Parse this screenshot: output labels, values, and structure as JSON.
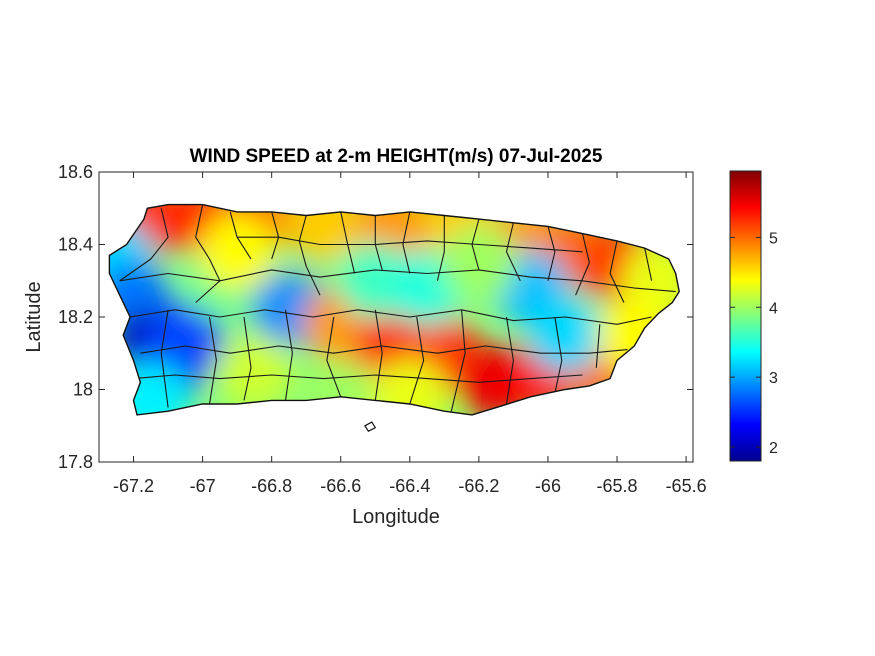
{
  "chart_data": {
    "type": "heatmap",
    "title": "WIND SPEED at 2-m HEIGHT(m/s) 07-Jul-2025",
    "xlabel": "Longitude",
    "ylabel": "Latitude",
    "xlim": [
      -67.3,
      -65.58
    ],
    "ylim": [
      17.8,
      18.6
    ],
    "x_ticks": [
      -67.2,
      -67,
      -66.8,
      -66.6,
      -66.4,
      -66.2,
      -66,
      -65.8,
      -65.6
    ],
    "x_tick_labels": [
      "-67.2",
      "-67",
      "-66.8",
      "-66.6",
      "-66.4",
      "-66.2",
      "-66",
      "-65.8",
      "-65.6"
    ],
    "y_ticks": [
      17.8,
      18,
      18.2,
      18.4,
      18.6
    ],
    "y_tick_labels": [
      "17.8",
      "18",
      "18.2",
      "18.4",
      "18.6"
    ],
    "colorbar": {
      "colormap": "jet",
      "range": [
        1.8,
        5.95
      ],
      "ticks": [
        2,
        3,
        4,
        5
      ],
      "tick_labels": [
        "2",
        "3",
        "4",
        "5"
      ]
    },
    "grid": false,
    "wind_field_samples": [
      {
        "lon": -67.15,
        "lat": 18.48,
        "speed": 5.2
      },
      {
        "lon": -67.0,
        "lat": 18.47,
        "speed": 5.3
      },
      {
        "lon": -66.85,
        "lat": 18.47,
        "speed": 5.0
      },
      {
        "lon": -66.65,
        "lat": 18.46,
        "speed": 4.6
      },
      {
        "lon": -66.45,
        "lat": 18.46,
        "speed": 4.8
      },
      {
        "lon": -66.25,
        "lat": 18.45,
        "speed": 4.6
      },
      {
        "lon": -66.05,
        "lat": 18.42,
        "speed": 4.8
      },
      {
        "lon": -65.9,
        "lat": 18.38,
        "speed": 5.0
      },
      {
        "lon": -65.78,
        "lat": 18.34,
        "speed": 5.3
      },
      {
        "lon": -65.68,
        "lat": 18.3,
        "speed": 4.3
      },
      {
        "lon": -67.25,
        "lat": 18.36,
        "speed": 3.2
      },
      {
        "lon": -67.2,
        "lat": 18.25,
        "speed": 2.8
      },
      {
        "lon": -67.15,
        "lat": 18.12,
        "speed": 2.0
      },
      {
        "lon": -67.1,
        "lat": 18.06,
        "speed": 2.3
      },
      {
        "lon": -67.05,
        "lat": 18.14,
        "speed": 2.6
      },
      {
        "lon": -67.15,
        "lat": 17.97,
        "speed": 3.3
      },
      {
        "lon": -66.95,
        "lat": 18.3,
        "speed": 3.8
      },
      {
        "lon": -66.75,
        "lat": 18.22,
        "speed": 2.9
      },
      {
        "lon": -66.6,
        "lat": 18.18,
        "speed": 4.8
      },
      {
        "lon": -66.45,
        "lat": 18.12,
        "speed": 5.3
      },
      {
        "lon": -66.3,
        "lat": 18.1,
        "speed": 5.2
      },
      {
        "lon": -66.15,
        "lat": 18.02,
        "speed": 5.5
      },
      {
        "lon": -66.0,
        "lat": 18.04,
        "speed": 5.4
      },
      {
        "lon": -65.85,
        "lat": 18.06,
        "speed": 5.0
      },
      {
        "lon": -66.05,
        "lat": 18.28,
        "speed": 3.1
      },
      {
        "lon": -65.95,
        "lat": 18.15,
        "speed": 3.2
      },
      {
        "lon": -66.5,
        "lat": 18.3,
        "speed": 3.6
      },
      {
        "lon": -66.35,
        "lat": 18.28,
        "speed": 3.5
      },
      {
        "lon": -66.85,
        "lat": 18.05,
        "speed": 4.2
      },
      {
        "lon": -66.6,
        "lat": 17.98,
        "speed": 4.0
      },
      {
        "lon": -66.4,
        "lat": 17.98,
        "speed": 4.3
      },
      {
        "lon": -66.9,
        "lat": 18.38,
        "speed": 4.4
      },
      {
        "lon": -66.2,
        "lat": 18.35,
        "speed": 4.0
      },
      {
        "lon": -65.75,
        "lat": 18.15,
        "speed": 4.4
      }
    ]
  }
}
